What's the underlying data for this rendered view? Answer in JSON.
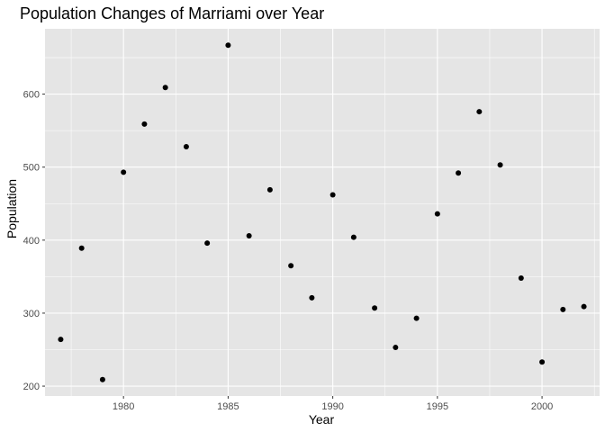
{
  "chart_data": {
    "type": "scatter",
    "title": "Population Changes of Marriami over Year",
    "xlabel": "Year",
    "ylabel": "Population",
    "xlim": [
      1976.25,
      2002.75
    ],
    "ylim": [
      186.5,
      689.5
    ],
    "x_ticks": [
      1980,
      1985,
      1990,
      1995,
      2000
    ],
    "x_tick_labels": [
      "1980",
      "1985",
      "1990",
      "1995",
      "2000"
    ],
    "y_ticks": [
      200,
      300,
      400,
      500,
      600
    ],
    "y_tick_labels": [
      "200",
      "300",
      "400",
      "500",
      "600"
    ],
    "grid": true,
    "colors": {
      "panel": "#e5e5e5",
      "grid_major": "#ffffff",
      "point": "#000000"
    },
    "points": [
      {
        "x": 1977,
        "y": 264
      },
      {
        "x": 1978,
        "y": 389
      },
      {
        "x": 1979,
        "y": 209
      },
      {
        "x": 1980,
        "y": 493
      },
      {
        "x": 1981,
        "y": 559
      },
      {
        "x": 1982,
        "y": 609
      },
      {
        "x": 1983,
        "y": 528
      },
      {
        "x": 1984,
        "y": 396
      },
      {
        "x": 1985,
        "y": 667
      },
      {
        "x": 1986,
        "y": 406
      },
      {
        "x": 1987,
        "y": 469
      },
      {
        "x": 1988,
        "y": 365
      },
      {
        "x": 1989,
        "y": 321
      },
      {
        "x": 1990,
        "y": 462
      },
      {
        "x": 1991,
        "y": 404
      },
      {
        "x": 1992,
        "y": 307
      },
      {
        "x": 1993,
        "y": 253
      },
      {
        "x": 1994,
        "y": 293
      },
      {
        "x": 1995,
        "y": 436
      },
      {
        "x": 1996,
        "y": 492
      },
      {
        "x": 1997,
        "y": 576
      },
      {
        "x": 1998,
        "y": 503
      },
      {
        "x": 1999,
        "y": 348
      },
      {
        "x": 2000,
        "y": 233
      },
      {
        "x": 2001,
        "y": 305
      },
      {
        "x": 2002,
        "y": 309
      }
    ]
  }
}
